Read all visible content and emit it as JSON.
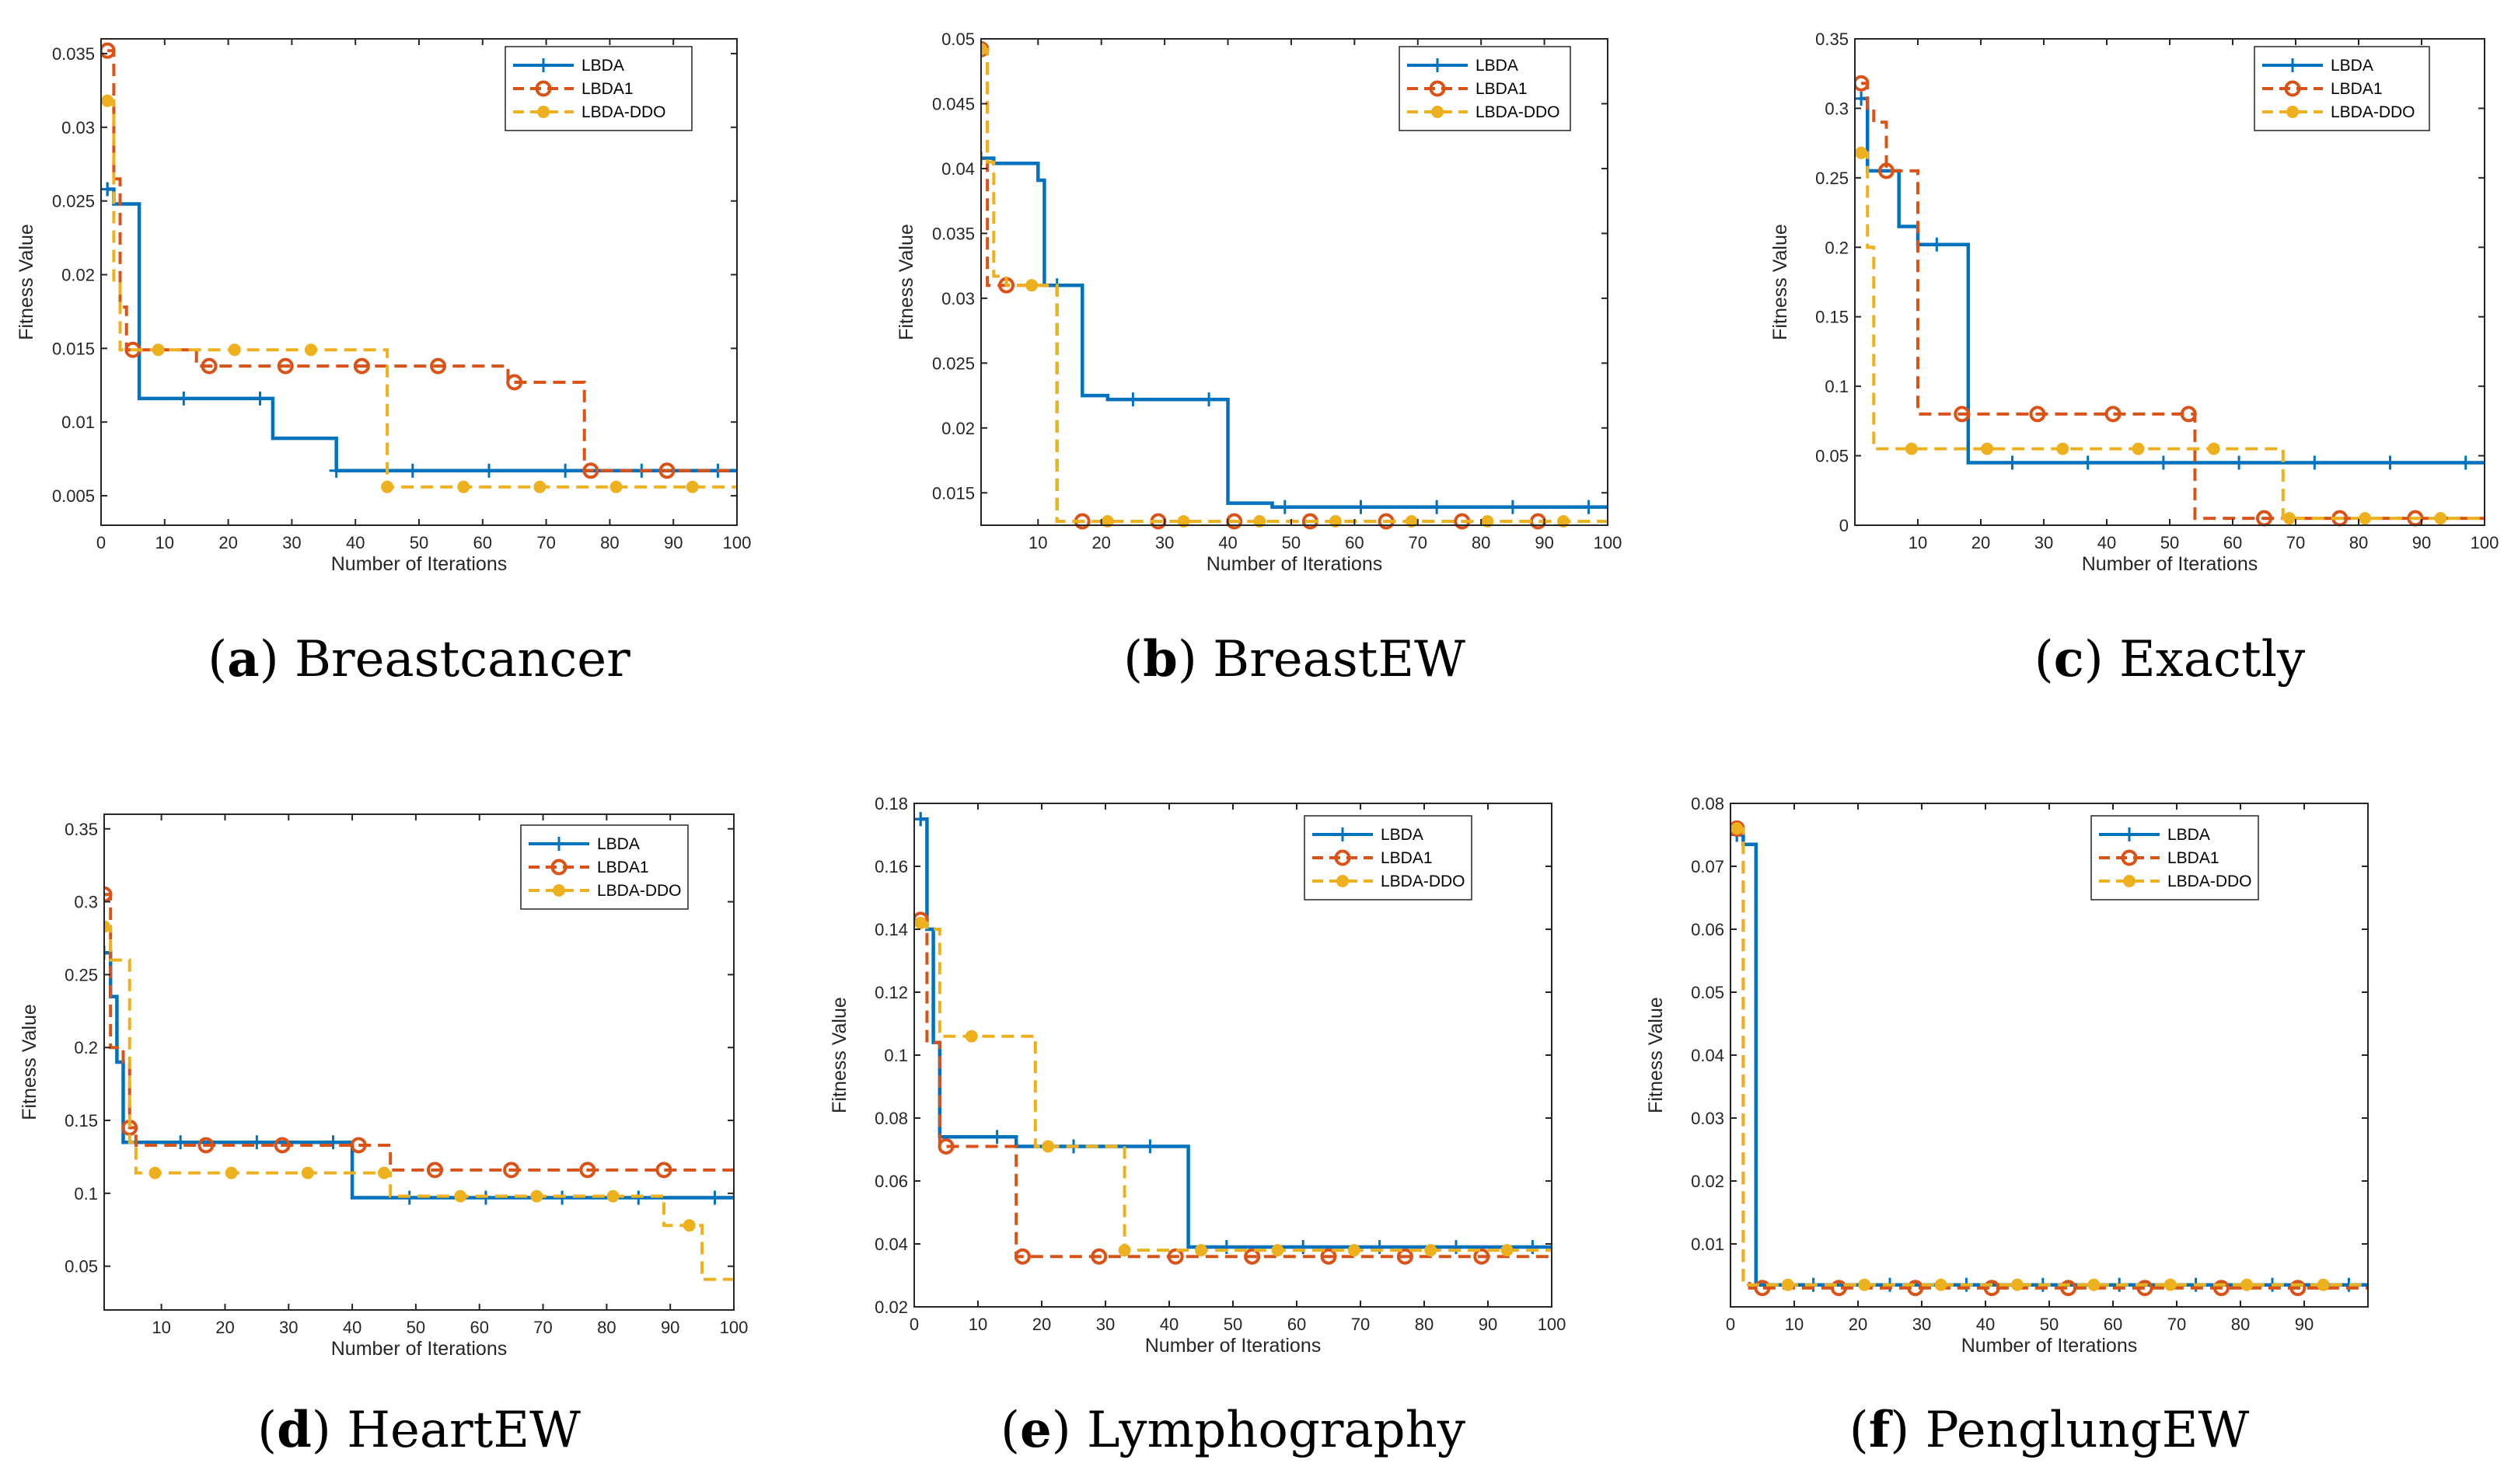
{
  "figure": {
    "legend_labels": [
      "LBDA",
      "LBDA1",
      "LBDA-DDO"
    ],
    "series_colors": {
      "LBDA": "#0072BD",
      "LBDA1": "#D95319",
      "LBDA-DDO": "#EDB120"
    },
    "x_axis_label": "Number of Iterations",
    "y_axis_label": "Fitness Value"
  },
  "chart_data": [
    {
      "id": "a",
      "caption_letter": "a",
      "caption_name": "Breastcancer",
      "type": "line",
      "title": "",
      "xlabel": "Number of Iterations",
      "ylabel": "Fitness Value",
      "xlim": [
        0,
        100
      ],
      "ylim": [
        0.003,
        0.036
      ],
      "xticks": [
        0,
        10,
        20,
        30,
        40,
        50,
        60,
        70,
        80,
        90,
        100
      ],
      "xtick_labels": [
        "0",
        "10",
        "20",
        "30",
        "40",
        "50",
        "60",
        "70",
        "80",
        "90",
        "100"
      ],
      "yticks": [
        0.005,
        0.01,
        0.015,
        0.02,
        0.025,
        0.03,
        0.035
      ],
      "ytick_labels": [
        "0.005",
        "0.01",
        "0.015",
        "0.02",
        "0.025",
        "0.03",
        "0.035"
      ],
      "legend_position": "top-right",
      "series": [
        {
          "name": "LBDA",
          "marker": "plus",
          "x": [
            1,
            2,
            5,
            6,
            26,
            27,
            36,
            37,
            100
          ],
          "y": [
            0.0258,
            0.0248,
            0.0248,
            0.0116,
            0.0116,
            0.0089,
            0.0089,
            0.0067,
            0.0067
          ]
        },
        {
          "name": "LBDA1",
          "marker": "circle",
          "x": [
            1,
            2,
            3,
            4,
            14,
            15,
            63,
            64,
            75,
            76,
            100
          ],
          "y": [
            0.0352,
            0.0265,
            0.0178,
            0.0149,
            0.0149,
            0.0138,
            0.0138,
            0.0127,
            0.0127,
            0.0067,
            0.0067
          ]
        },
        {
          "name": "LBDA-DDO",
          "marker": "dot",
          "x": [
            1,
            2,
            3,
            44,
            45,
            100
          ],
          "y": [
            0.0318,
            0.0195,
            0.0149,
            0.0149,
            0.0056,
            0.0056
          ]
        }
      ]
    },
    {
      "id": "b",
      "caption_letter": "b",
      "caption_name": "BreastEW",
      "type": "line",
      "title": "",
      "xlabel": "Number of Iterations",
      "ylabel": "Fitness Value",
      "xlim": [
        1,
        100
      ],
      "ylim": [
        0.0125,
        0.05
      ],
      "xticks": [
        10,
        20,
        30,
        40,
        50,
        60,
        70,
        80,
        90,
        100
      ],
      "xtick_labels": [
        "10",
        "20",
        "30",
        "40",
        "50",
        "60",
        "70",
        "80",
        "90",
        "100"
      ],
      "yticks": [
        0.015,
        0.02,
        0.025,
        0.03,
        0.035,
        0.04,
        0.045,
        0.05
      ],
      "ytick_labels": [
        "0.015",
        "0.02",
        "0.025",
        "0.03",
        "0.035",
        "0.04",
        "0.045",
        "0.05"
      ],
      "legend_position": "top-right",
      "series": [
        {
          "name": "LBDA",
          "marker": "plus",
          "x": [
            1,
            3,
            8,
            10,
            11,
            16,
            17,
            20,
            21,
            39,
            40,
            46,
            47,
            100
          ],
          "y": [
            0.0408,
            0.0404,
            0.0404,
            0.0391,
            0.031,
            0.031,
            0.0225,
            0.0225,
            0.0222,
            0.0222,
            0.0142,
            0.0142,
            0.0139,
            0.0139
          ]
        },
        {
          "name": "LBDA1",
          "marker": "circle",
          "x": [
            1,
            2,
            10,
            11,
            12,
            13,
            100
          ],
          "y": [
            0.0492,
            0.031,
            0.031,
            0.031,
            0.031,
            0.0128,
            0.0128
          ]
        },
        {
          "name": "LBDA-DDO",
          "marker": "dot",
          "x": [
            1,
            2,
            3,
            5,
            11,
            12,
            13,
            100
          ],
          "y": [
            0.0492,
            0.0405,
            0.0317,
            0.031,
            0.031,
            0.031,
            0.0128,
            0.0128
          ]
        }
      ]
    },
    {
      "id": "c",
      "caption_letter": "c",
      "caption_name": "Exactly",
      "type": "line",
      "title": "",
      "xlabel": "Number of Iterations",
      "ylabel": "Fitness Value",
      "xlim": [
        0,
        100
      ],
      "ylim": [
        0,
        0.35
      ],
      "xticks": [
        10,
        20,
        30,
        40,
        50,
        60,
        70,
        80,
        90,
        100
      ],
      "xtick_labels": [
        "10",
        "20",
        "30",
        "40",
        "50",
        "60",
        "70",
        "80",
        "90",
        "100"
      ],
      "yticks": [
        0,
        0.05,
        0.1,
        0.15,
        0.2,
        0.25,
        0.3,
        0.35
      ],
      "ytick_labels": [
        "0",
        "0.05",
        "0.1",
        "0.15",
        "0.2",
        "0.25",
        "0.3",
        "0.35"
      ],
      "legend_position": "top-right",
      "series": [
        {
          "name": "LBDA",
          "marker": "plus",
          "x": [
            1,
            2,
            6,
            7,
            9,
            10,
            17,
            18,
            100
          ],
          "y": [
            0.307,
            0.255,
            0.255,
            0.215,
            0.215,
            0.202,
            0.202,
            0.045,
            0.045
          ]
        },
        {
          "name": "LBDA1",
          "marker": "circle",
          "x": [
            1,
            2,
            3,
            5,
            9,
            10,
            53,
            54,
            100
          ],
          "y": [
            0.318,
            0.3,
            0.29,
            0.255,
            0.255,
            0.08,
            0.08,
            0.005,
            0.005
          ]
        },
        {
          "name": "LBDA-DDO",
          "marker": "dot",
          "x": [
            1,
            2,
            3,
            67,
            68,
            100
          ],
          "y": [
            0.268,
            0.2,
            0.055,
            0.055,
            0.005,
            0.005
          ]
        }
      ]
    },
    {
      "id": "d",
      "caption_letter": "d",
      "caption_name": "HeartEW",
      "type": "line",
      "title": "",
      "xlabel": "Number of Iterations",
      "ylabel": "Fitness Value",
      "xlim": [
        1,
        100
      ],
      "ylim": [
        0.02,
        0.36
      ],
      "xticks": [
        10,
        20,
        30,
        40,
        50,
        60,
        70,
        80,
        90,
        100
      ],
      "xtick_labels": [
        "10",
        "20",
        "30",
        "40",
        "50",
        "60",
        "70",
        "80",
        "90",
        "100"
      ],
      "yticks": [
        0.05,
        0.1,
        0.15,
        0.2,
        0.25,
        0.3,
        0.35
      ],
      "ytick_labels": [
        "0.05",
        "0.1",
        "0.15",
        "0.2",
        "0.25",
        "0.3",
        "0.35"
      ],
      "legend_position": "top-right",
      "series": [
        {
          "name": "LBDA",
          "marker": "plus",
          "x": [
            1,
            2,
            3,
            4,
            39,
            40,
            100
          ],
          "y": [
            0.265,
            0.235,
            0.19,
            0.135,
            0.135,
            0.097,
            0.097
          ]
        },
        {
          "name": "LBDA1",
          "marker": "circle",
          "x": [
            1,
            2,
            4,
            5,
            6,
            45,
            46,
            100
          ],
          "y": [
            0.305,
            0.2,
            0.19,
            0.145,
            0.133,
            0.133,
            0.116,
            0.116
          ]
        },
        {
          "name": "LBDA-DDO",
          "marker": "dot",
          "x": [
            1,
            2,
            5,
            6,
            37,
            38,
            45,
            46,
            88,
            89,
            94,
            95,
            100
          ],
          "y": [
            0.283,
            0.26,
            0.135,
            0.114,
            0.114,
            0.114,
            0.114,
            0.098,
            0.098,
            0.078,
            0.078,
            0.041,
            0.041
          ]
        }
      ]
    },
    {
      "id": "e",
      "caption_letter": "e",
      "caption_name": "Lymphography",
      "type": "line",
      "title": "",
      "xlabel": "Number of Iterations",
      "ylabel": "Fitness Value",
      "xlim": [
        0,
        100
      ],
      "ylim": [
        0.02,
        0.18
      ],
      "xticks": [
        0,
        10,
        20,
        30,
        40,
        50,
        60,
        70,
        80,
        90,
        100
      ],
      "xtick_labels": [
        "0",
        "10",
        "20",
        "30",
        "40",
        "50",
        "60",
        "70",
        "80",
        "90",
        "100"
      ],
      "yticks": [
        0.02,
        0.04,
        0.06,
        0.08,
        0.1,
        0.12,
        0.14,
        0.16,
        0.18
      ],
      "ytick_labels": [
        "0.02",
        "0.04",
        "0.06",
        "0.08",
        "0.1",
        "0.12",
        "0.14",
        "0.16",
        "0.18"
      ],
      "legend_position": "top-right",
      "series": [
        {
          "name": "LBDA",
          "marker": "plus",
          "x": [
            1,
            2,
            3,
            4,
            15,
            16,
            42,
            43,
            100
          ],
          "y": [
            0.175,
            0.14,
            0.104,
            0.074,
            0.074,
            0.071,
            0.071,
            0.039,
            0.039
          ]
        },
        {
          "name": "LBDA1",
          "marker": "circle",
          "x": [
            1,
            2,
            3,
            4,
            15,
            16,
            100
          ],
          "y": [
            0.143,
            0.104,
            0.104,
            0.071,
            0.071,
            0.036,
            0.036
          ]
        },
        {
          "name": "LBDA-DDO",
          "marker": "dot",
          "x": [
            1,
            2,
            3,
            4,
            18,
            19,
            32,
            33,
            100
          ],
          "y": [
            0.142,
            0.14,
            0.14,
            0.106,
            0.106,
            0.071,
            0.071,
            0.038,
            0.038
          ]
        }
      ]
    },
    {
      "id": "f",
      "caption_letter": "f",
      "caption_name": "PenglungEW",
      "type": "line",
      "title": "",
      "xlabel": "Number of Iterations",
      "ylabel": "Fitness Value",
      "xlim": [
        0,
        100
      ],
      "ylim": [
        0,
        0.08
      ],
      "xticks": [
        0,
        10,
        20,
        30,
        40,
        50,
        60,
        70,
        80,
        90
      ],
      "xtick_labels": [
        "0",
        "10",
        "20",
        "30",
        "40",
        "50",
        "60",
        "70",
        "80",
        "90"
      ],
      "yticks": [
        0.01,
        0.02,
        0.03,
        0.04,
        0.05,
        0.06,
        0.07,
        0.08
      ],
      "ytick_labels": [
        "0.01",
        "0.02",
        "0.03",
        "0.04",
        "0.05",
        "0.06",
        "0.07",
        "0.08"
      ],
      "legend_position": "top-right",
      "series": [
        {
          "name": "LBDA",
          "marker": "plus",
          "x": [
            1,
            2,
            3,
            4,
            100
          ],
          "y": [
            0.075,
            0.0735,
            0.0735,
            0.0035,
            0.0035
          ]
        },
        {
          "name": "LBDA1",
          "marker": "circle",
          "x": [
            1,
            2,
            3,
            100
          ],
          "y": [
            0.076,
            0.004,
            0.003,
            0.003
          ]
        },
        {
          "name": "LBDA-DDO",
          "marker": "dot",
          "x": [
            1,
            2,
            100
          ],
          "y": [
            0.076,
            0.0035,
            0.0035
          ]
        }
      ]
    }
  ]
}
